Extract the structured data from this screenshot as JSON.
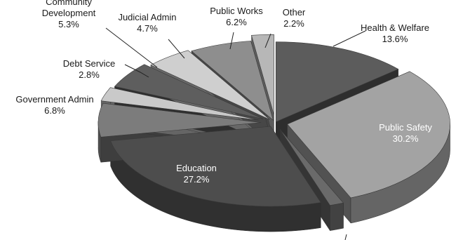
{
  "chart_data": {
    "type": "pie",
    "style": "3d-exploded",
    "legend": "none",
    "slices": [
      {
        "label": "Health & Welfare",
        "percent_text": "13.6%",
        "value": 13.6,
        "color": "#5c5c5c",
        "label_position": "outside"
      },
      {
        "label": "Public Safety",
        "percent_text": "30.2%",
        "value": 30.2,
        "color": "#a3a3a3",
        "label_position": "inside"
      },
      {
        "label": "",
        "percent_text": "",
        "value": 1.4,
        "color": "#6a6a6a",
        "label_position": "outside"
      },
      {
        "label": "Education",
        "percent_text": "27.2%",
        "value": 27.2,
        "color": "#4d4d4d",
        "label_position": "inside"
      },
      {
        "label": "Government Admin",
        "percent_text": "6.8%",
        "value": 6.8,
        "color": "#7c7c7c",
        "label_position": "outside"
      },
      {
        "label": "Debt Service",
        "percent_text": "2.8%",
        "value": 2.8,
        "color": "#c9c9c9",
        "label_position": "outside"
      },
      {
        "label": "Community Development",
        "percent_text": "5.3%",
        "value": 5.3,
        "color": "#5e5e5e",
        "label_position": "outside"
      },
      {
        "label": "Judicial Admin",
        "percent_text": "4.7%",
        "value": 4.7,
        "color": "#cfcfcf",
        "label_position": "outside"
      },
      {
        "label": "Public Works",
        "percent_text": "6.2%",
        "value": 6.2,
        "color": "#8e8e8e",
        "label_position": "outside"
      },
      {
        "label": "Other",
        "percent_text": "2.2%",
        "value": 2.2,
        "color": "#b7b7b7",
        "label_position": "outside"
      }
    ]
  }
}
